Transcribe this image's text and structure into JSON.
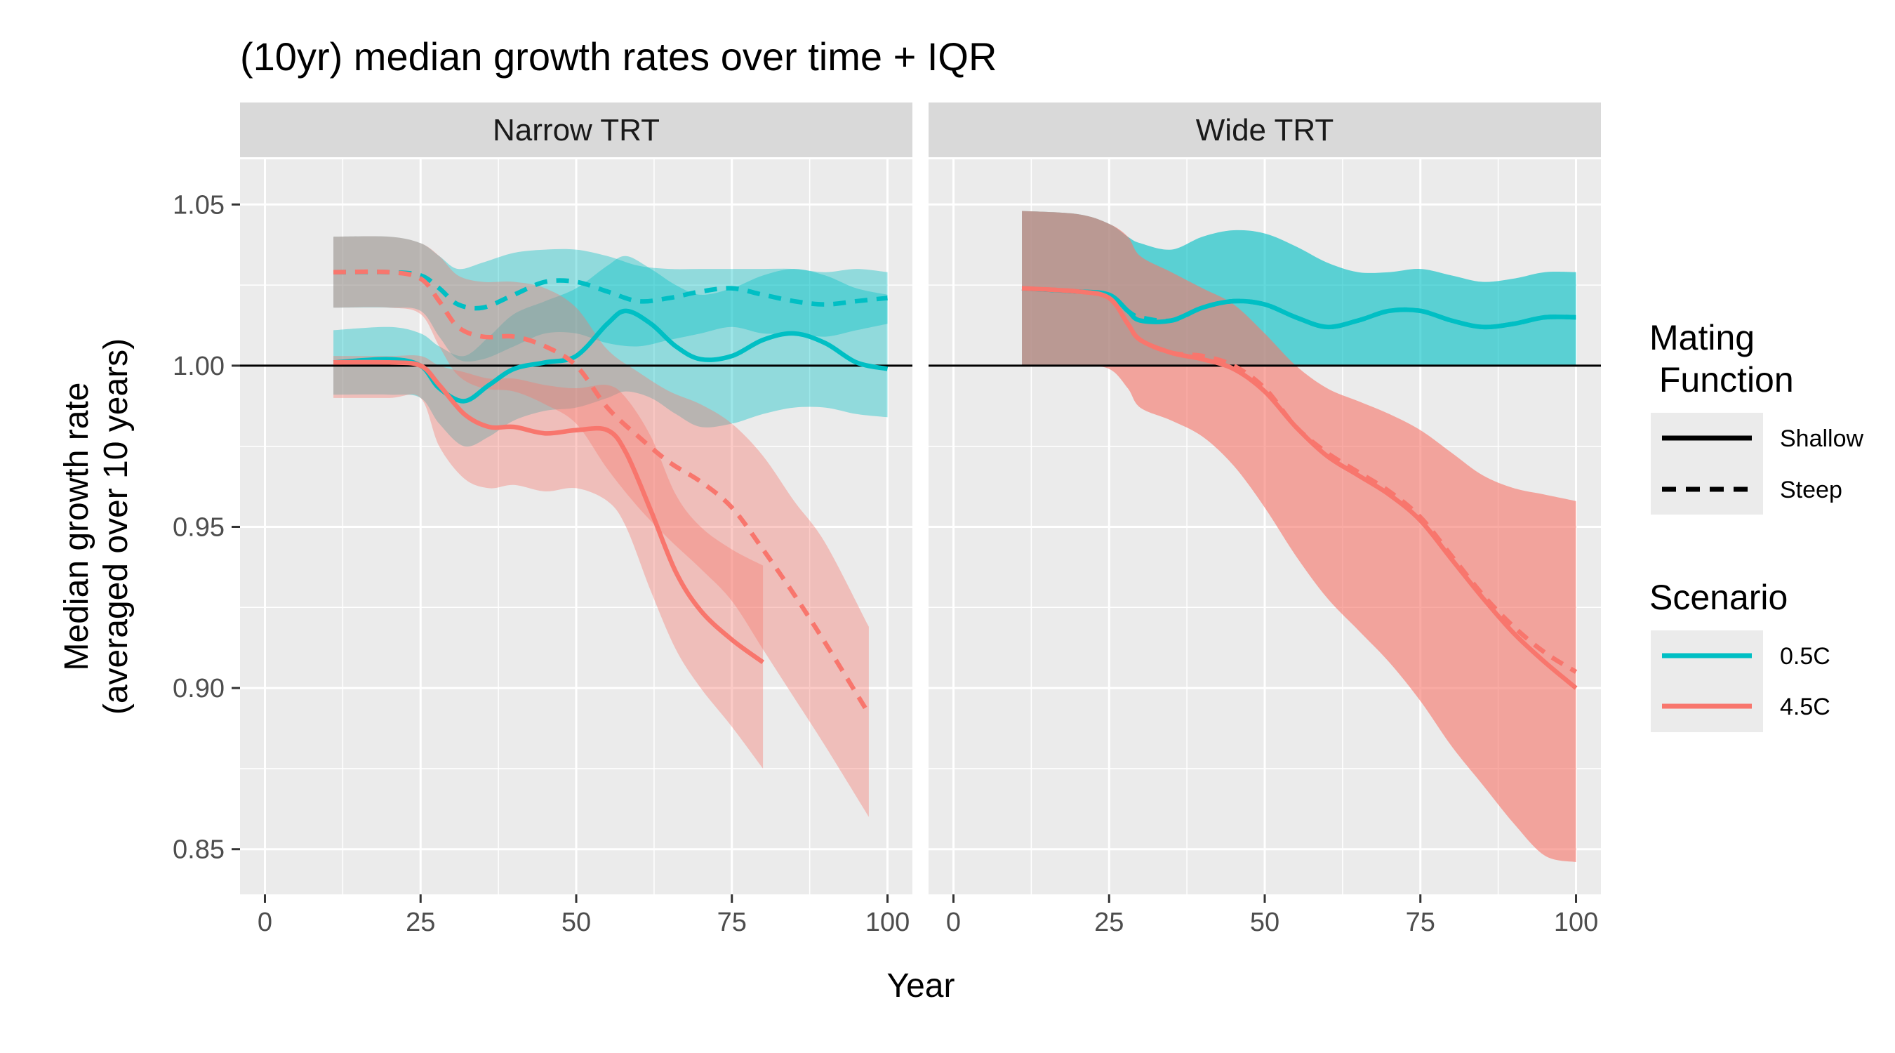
{
  "chart_data": {
    "type": "line",
    "title": "(10yr) median growth rates over time + IQR",
    "xlabel": "Year",
    "ylabel_lines": [
      "Median growth rate",
      "(averaged over 10 years)"
    ],
    "xlim": [
      -4,
      104
    ],
    "ylim": [
      0.836,
      1.064
    ],
    "x_ticks": [
      0,
      25,
      50,
      75,
      100
    ],
    "y_ticks": [
      0.85,
      0.9,
      0.95,
      1.0,
      1.05
    ],
    "y_tick_labels": [
      "0.85",
      "0.90",
      "0.95",
      "1.00",
      "1.05"
    ],
    "reference_line_y": 1.0,
    "grid": true,
    "legend_position": "right",
    "legends": {
      "linetype": {
        "title_lines": [
          "Mating",
          " Function"
        ],
        "entries": [
          "Shallow",
          "Steep"
        ]
      },
      "color": {
        "title": "Scenario",
        "entries": [
          "0.5C",
          "4.5C"
        ]
      }
    },
    "colors": {
      "0.5C": "#00bfc4",
      "4.5C": "#f8766d",
      "panel_bg": "#ebebeb",
      "strip_bg": "#d9d9d9",
      "grid": "#ffffff"
    },
    "panels": [
      {
        "label": "Narrow TRT",
        "series": [
          {
            "scenario": "0.5C",
            "function": "Shallow",
            "x": [
              11,
              20,
              25,
              28,
              32,
              36,
              40,
              45,
              50,
              55,
              58,
              62,
              66,
              70,
              75,
              80,
              85,
              90,
              95,
              100
            ],
            "y": [
              1.001,
              1.002,
              1.0,
              0.993,
              0.989,
              0.994,
              0.999,
              1.001,
              1.003,
              1.013,
              1.017,
              1.013,
              1.006,
              1.002,
              1.003,
              1.008,
              1.01,
              1.007,
              1.001,
              0.999
            ],
            "lower": [
              0.991,
              0.991,
              0.99,
              0.982,
              0.975,
              0.978,
              0.983,
              0.986,
              0.987,
              0.99,
              0.992,
              0.99,
              0.985,
              0.981,
              0.982,
              0.985,
              0.987,
              0.987,
              0.985,
              0.984
            ],
            "upper": [
              1.011,
              1.012,
              1.01,
              1.006,
              1.003,
              1.009,
              1.016,
              1.02,
              1.024,
              1.031,
              1.034,
              1.03,
              1.025,
              1.022,
              1.024,
              1.028,
              1.03,
              1.028,
              1.024,
              1.022
            ]
          },
          {
            "scenario": "0.5C",
            "function": "Steep",
            "x": [
              11,
              20,
              25,
              28,
              31,
              35,
              40,
              45,
              50,
              55,
              60,
              65,
              70,
              75,
              80,
              85,
              90,
              95,
              100
            ],
            "y": [
              1.029,
              1.029,
              1.028,
              1.024,
              1.019,
              1.018,
              1.022,
              1.026,
              1.026,
              1.023,
              1.02,
              1.021,
              1.023,
              1.024,
              1.022,
              1.02,
              1.019,
              1.02,
              1.021
            ],
            "lower": [
              1.018,
              1.018,
              1.017,
              1.009,
              1.002,
              1.002,
              1.006,
              1.01,
              1.01,
              1.007,
              1.006,
              1.008,
              1.01,
              1.012,
              1.01,
              1.01,
              1.009,
              1.011,
              1.013
            ],
            "upper": [
              1.04,
              1.04,
              1.038,
              1.034,
              1.03,
              1.032,
              1.035,
              1.036,
              1.036,
              1.034,
              1.031,
              1.03,
              1.03,
              1.03,
              1.03,
              1.03,
              1.029,
              1.03,
              1.029
            ]
          },
          {
            "scenario": "4.5C",
            "function": "Shallow",
            "x": [
              11,
              20,
              25,
              28,
              32,
              36,
              40,
              45,
              50,
              55,
              58,
              62,
              66,
              70,
              75,
              80
            ],
            "y": [
              1.001,
              1.001,
              1.0,
              0.994,
              0.985,
              0.981,
              0.981,
              0.979,
              0.98,
              0.98,
              0.973,
              0.955,
              0.936,
              0.924,
              0.915,
              0.908
            ],
            "lower": [
              0.99,
              0.99,
              0.99,
              0.975,
              0.965,
              0.962,
              0.963,
              0.961,
              0.962,
              0.958,
              0.95,
              0.93,
              0.912,
              0.9,
              0.888,
              0.875
            ],
            "upper": [
              1.003,
              1.003,
              1.003,
              1.0,
              0.998,
              0.996,
              0.996,
              0.994,
              0.993,
              0.994,
              0.99,
              0.978,
              0.96,
              0.95,
              0.943,
              0.938
            ]
          },
          {
            "scenario": "4.5C",
            "function": "Steep",
            "x": [
              11,
              20,
              25,
              28,
              31,
              35,
              40,
              45,
              50,
              55,
              60,
              65,
              70,
              75,
              80,
              85,
              90,
              97
            ],
            "y": [
              1.029,
              1.029,
              1.027,
              1.02,
              1.012,
              1.009,
              1.009,
              1.006,
              1.0,
              0.987,
              0.978,
              0.97,
              0.964,
              0.956,
              0.943,
              0.929,
              0.914,
              0.892
            ],
            "lower": [
              1.018,
              1.018,
              1.016,
              1.006,
              0.997,
              0.993,
              0.992,
              0.988,
              0.982,
              0.968,
              0.956,
              0.946,
              0.937,
              0.927,
              0.912,
              0.897,
              0.882,
              0.86
            ],
            "upper": [
              1.04,
              1.04,
              1.038,
              1.034,
              1.028,
              1.026,
              1.026,
              1.024,
              1.018,
              1.005,
              0.998,
              0.992,
              0.988,
              0.982,
              0.972,
              0.958,
              0.945,
              0.919
            ]
          }
        ]
      },
      {
        "label": "Wide TRT",
        "series": [
          {
            "scenario": "0.5C",
            "function": "Shallow",
            "x": [
              11,
              20,
              25,
              28,
              30,
              35,
              40,
              45,
              50,
              55,
              60,
              65,
              70,
              75,
              80,
              85,
              90,
              95,
              100
            ],
            "y": [
              1.024,
              1.023,
              1.022,
              1.017,
              1.014,
              1.014,
              1.018,
              1.02,
              1.019,
              1.015,
              1.012,
              1.014,
              1.017,
              1.017,
              1.014,
              1.012,
              1.013,
              1.015,
              1.015
            ],
            "lower": [
              1.0,
              1.0,
              1.0,
              1.0,
              1.0,
              1.0,
              1.0,
              1.0,
              1.0,
              1.0,
              1.0,
              1.0,
              1.0,
              1.0,
              1.0,
              1.0,
              1.0,
              1.0,
              1.0
            ],
            "upper": [
              1.048,
              1.047,
              1.044,
              1.04,
              1.038,
              1.036,
              1.04,
              1.042,
              1.041,
              1.037,
              1.032,
              1.029,
              1.029,
              1.03,
              1.028,
              1.026,
              1.027,
              1.029,
              1.029
            ]
          },
          {
            "scenario": "0.5C",
            "function": "Steep",
            "x": [
              11,
              20,
              25,
              28,
              30,
              35,
              40,
              45,
              50,
              55,
              60,
              65,
              70,
              75,
              80,
              85,
              90,
              95,
              100
            ],
            "y": [
              1.024,
              1.023,
              1.022,
              1.017,
              1.015,
              1.014,
              1.018,
              1.02,
              1.019,
              1.015,
              1.012,
              1.014,
              1.017,
              1.017,
              1.014,
              1.012,
              1.013,
              1.015,
              1.015
            ],
            "lower": [
              1.0,
              1.0,
              1.0,
              1.0,
              1.0,
              1.0,
              1.0,
              1.0,
              1.0,
              1.0,
              1.0,
              1.0,
              1.0,
              1.0,
              1.0,
              1.0,
              1.0,
              1.0,
              1.0
            ],
            "upper": [
              1.048,
              1.047,
              1.044,
              1.04,
              1.038,
              1.036,
              1.04,
              1.042,
              1.041,
              1.037,
              1.032,
              1.029,
              1.029,
              1.03,
              1.028,
              1.026,
              1.027,
              1.029,
              1.029
            ]
          },
          {
            "scenario": "4.5C",
            "function": "Shallow",
            "x": [
              11,
              20,
              25,
              28,
              30,
              35,
              40,
              45,
              50,
              55,
              60,
              65,
              70,
              75,
              80,
              85,
              90,
              95,
              100
            ],
            "y": [
              1.024,
              1.023,
              1.021,
              1.013,
              1.008,
              1.004,
              1.002,
              0.999,
              0.992,
              0.981,
              0.972,
              0.966,
              0.96,
              0.952,
              0.94,
              0.928,
              0.917,
              0.908,
              0.9
            ],
            "lower": [
              1.0,
              1.0,
              0.999,
              0.993,
              0.987,
              0.983,
              0.978,
              0.969,
              0.956,
              0.941,
              0.928,
              0.918,
              0.908,
              0.896,
              0.882,
              0.87,
              0.858,
              0.848,
              0.846
            ],
            "upper": [
              1.048,
              1.047,
              1.044,
              1.04,
              1.034,
              1.029,
              1.024,
              1.019,
              1.01,
              1.0,
              0.993,
              0.989,
              0.985,
              0.98,
              0.973,
              0.966,
              0.962,
              0.96,
              0.958
            ]
          },
          {
            "scenario": "4.5C",
            "function": "Steep",
            "x": [
              11,
              20,
              25,
              28,
              30,
              35,
              40,
              45,
              50,
              55,
              60,
              65,
              70,
              75,
              80,
              85,
              90,
              95,
              100
            ],
            "y": [
              1.024,
              1.023,
              1.021,
              1.013,
              1.008,
              1.004,
              1.003,
              1.0,
              0.993,
              0.981,
              0.973,
              0.967,
              0.961,
              0.953,
              0.941,
              0.929,
              0.919,
              0.911,
              0.905
            ],
            "lower": [
              1.0,
              1.0,
              0.999,
              0.993,
              0.987,
              0.983,
              0.978,
              0.969,
              0.956,
              0.941,
              0.928,
              0.918,
              0.908,
              0.896,
              0.882,
              0.87,
              0.858,
              0.848,
              0.846
            ],
            "upper": [
              1.048,
              1.047,
              1.044,
              1.04,
              1.034,
              1.029,
              1.024,
              1.019,
              1.01,
              1.0,
              0.993,
              0.989,
              0.985,
              0.98,
              0.973,
              0.966,
              0.962,
              0.96,
              0.958
            ]
          }
        ]
      }
    ]
  }
}
